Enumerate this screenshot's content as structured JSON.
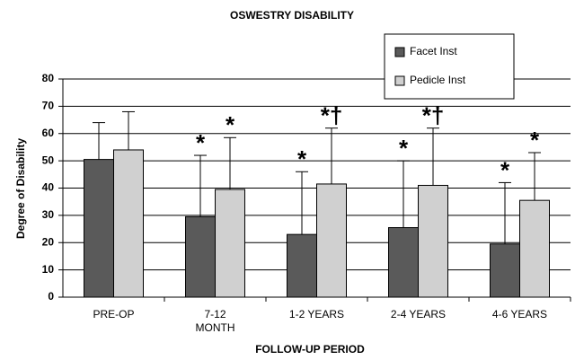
{
  "chart_data": {
    "type": "bar",
    "title": "OSWESTRY DISABILITY",
    "x_label": "FOLLOW-UP PERIOD",
    "y_label": "Degree of Disability",
    "categories": [
      "PRE-OP",
      "7-12\nMONTH",
      "1-2 YEARS",
      "2-4 YEARS",
      "4-6 YEARS"
    ],
    "series": [
      {
        "name": "Facet Inst",
        "color": "#5a5a5a",
        "values": [
          50.5,
          29.5,
          23,
          25.5,
          19.5
        ],
        "errors": [
          13.5,
          22.5,
          23,
          24.5,
          22.5
        ],
        "annotations": [
          null,
          "*",
          "*",
          "*",
          "*"
        ]
      },
      {
        "name": "Pedicle Inst",
        "color": "#d0d0d0",
        "values": [
          54,
          39.5,
          41.5,
          41,
          35.5
        ],
        "errors": [
          14,
          19,
          20.5,
          21,
          17.5
        ],
        "annotations": [
          null,
          "*",
          "*†",
          "*†",
          "*"
        ]
      }
    ],
    "ylim": [
      0,
      80
    ],
    "yticks": [
      0,
      10,
      20,
      30,
      40,
      50,
      60,
      70,
      80
    ],
    "grid": true,
    "legend": "top-right"
  }
}
